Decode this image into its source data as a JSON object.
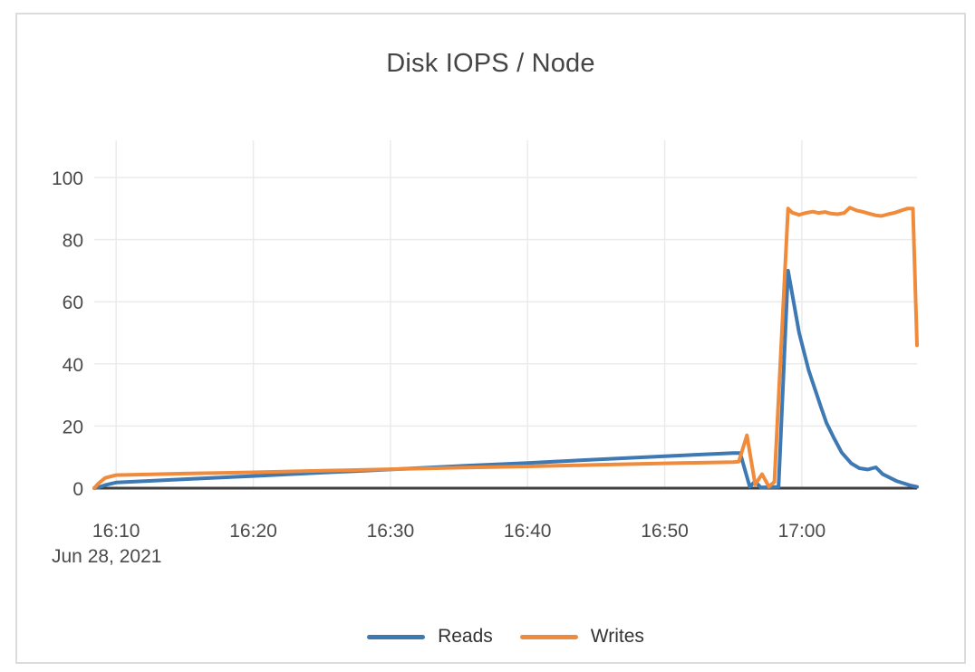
{
  "chart_data": {
    "type": "line",
    "title": "Disk IOPS / Node",
    "x_axis": {
      "date_label": "Jun 28, 2021",
      "tick_labels": [
        "16:10",
        "16:20",
        "16:30",
        "16:40",
        "16:50",
        "17:00"
      ],
      "tick_minutes": [
        10,
        20,
        30,
        40,
        50,
        60
      ],
      "range_minutes": [
        8.4,
        68.4
      ]
    },
    "y_axis": {
      "ticks": [
        0,
        20,
        40,
        60,
        80,
        100
      ],
      "tick_labels": [
        "0",
        "20",
        "40",
        "60",
        "80",
        "100"
      ],
      "range": [
        0,
        112
      ],
      "grid": true
    },
    "legend_position": "bottom",
    "colors": {
      "reads": "#3e79b4",
      "writes": "#ef8b3b",
      "gridline": "#ebebeb",
      "axis": "#3f3f3f"
    },
    "series": [
      {
        "name": "Reads",
        "color": "#3e79b4",
        "points": [
          [
            8.4,
            0
          ],
          [
            8.7,
            0.2
          ],
          [
            9.2,
            1.0
          ],
          [
            10,
            1.8
          ],
          [
            15,
            2.9
          ],
          [
            20,
            3.9
          ],
          [
            25,
            5.0
          ],
          [
            30,
            6.0
          ],
          [
            35,
            7.1
          ],
          [
            40,
            8.1
          ],
          [
            45,
            9.2
          ],
          [
            50,
            10.3
          ],
          [
            55,
            11.3
          ],
          [
            55.5,
            11.3
          ],
          [
            56.2,
            0.5
          ],
          [
            56.6,
            2.2
          ],
          [
            57.0,
            0.2
          ],
          [
            58.3,
            0.4
          ],
          [
            59.0,
            70
          ],
          [
            59.8,
            50
          ],
          [
            60.5,
            38
          ],
          [
            61.4,
            26
          ],
          [
            61.8,
            21
          ],
          [
            62.3,
            16.5
          ],
          [
            62.9,
            11.5
          ],
          [
            63.6,
            8.0
          ],
          [
            64.2,
            6.4
          ],
          [
            64.8,
            6.0
          ],
          [
            65.4,
            6.7
          ],
          [
            65.9,
            4.5
          ],
          [
            66.9,
            2.3
          ],
          [
            67.9,
            0.9
          ],
          [
            68.4,
            0.4
          ]
        ]
      },
      {
        "name": "Writes",
        "color": "#ef8b3b",
        "points": [
          [
            8.4,
            0
          ],
          [
            8.7,
            1.5
          ],
          [
            9.2,
            3.3
          ],
          [
            10,
            4.2
          ],
          [
            15,
            4.7
          ],
          [
            20,
            5.1
          ],
          [
            25,
            5.6
          ],
          [
            30,
            6.1
          ],
          [
            35,
            6.6
          ],
          [
            40,
            7.0
          ],
          [
            45,
            7.5
          ],
          [
            50,
            8.0
          ],
          [
            55,
            8.4
          ],
          [
            55.4,
            8.5
          ],
          [
            56.0,
            17.0
          ],
          [
            56.6,
            1.2
          ],
          [
            57.1,
            4.5
          ],
          [
            57.6,
            0.5
          ],
          [
            58.0,
            2.0
          ],
          [
            59.0,
            90
          ],
          [
            59.3,
            88.7
          ],
          [
            59.8,
            88.0
          ],
          [
            60.3,
            88.6
          ],
          [
            60.8,
            89.0
          ],
          [
            61.2,
            88.6
          ],
          [
            61.7,
            88.9
          ],
          [
            62.1,
            88.4
          ],
          [
            62.6,
            88.2
          ],
          [
            63.1,
            88.6
          ],
          [
            63.5,
            90.3
          ],
          [
            64.0,
            89.4
          ],
          [
            64.4,
            89.0
          ],
          [
            64.9,
            88.4
          ],
          [
            65.4,
            87.8
          ],
          [
            65.8,
            87.6
          ],
          [
            66.3,
            88.2
          ],
          [
            66.8,
            88.7
          ],
          [
            67.2,
            89.3
          ],
          [
            67.7,
            90.0
          ],
          [
            68.1,
            90.0
          ],
          [
            68.4,
            46
          ]
        ]
      }
    ]
  }
}
